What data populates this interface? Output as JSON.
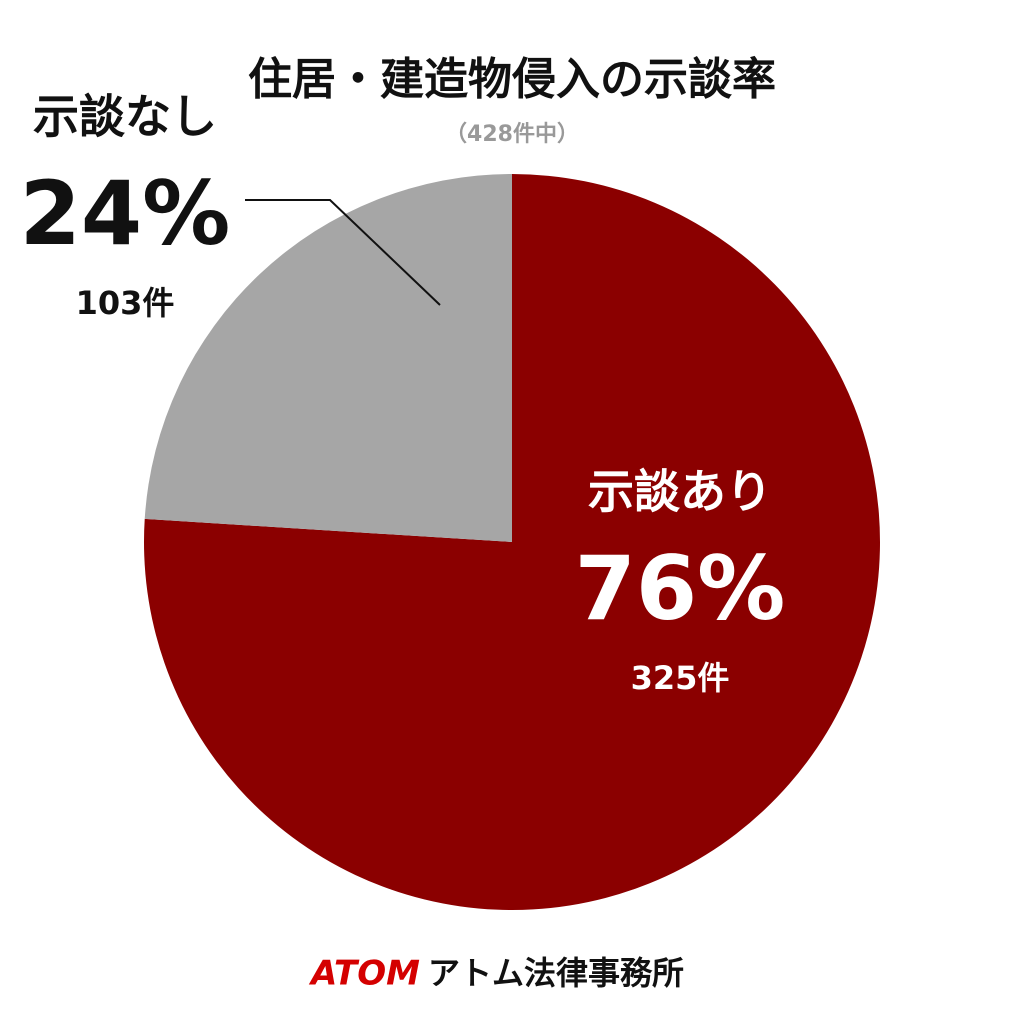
{
  "chart_data": {
    "type": "pie",
    "title": "住居・建造物侵入の示談率",
    "subtitle": "（428件中）",
    "categories": [
      "示談あり",
      "示談なし"
    ],
    "values": [
      76,
      24
    ],
    "value_labels": [
      "76%",
      "24%"
    ],
    "count_labels": [
      "325件",
      "103件"
    ],
    "colors": [
      "#8b0000",
      "#a6a6a6"
    ]
  },
  "footer": {
    "brand": "ATOM",
    "name": "アトム法律事務所"
  }
}
